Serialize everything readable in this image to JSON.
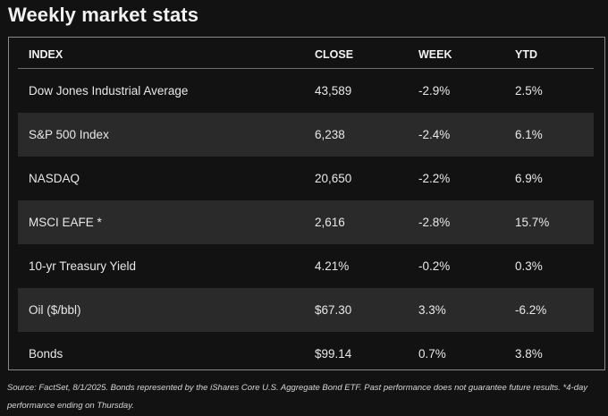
{
  "title": "Weekly market stats",
  "table": {
    "headers": [
      "INDEX",
      "CLOSE",
      "WEEK",
      "YTD"
    ],
    "rows": [
      {
        "index": "Dow Jones Industrial Average",
        "close": "43,589",
        "week": "-2.9%",
        "ytd": "2.5%"
      },
      {
        "index": "S&P 500 Index",
        "close": "6,238",
        "week": "-2.4%",
        "ytd": "6.1%"
      },
      {
        "index": "NASDAQ",
        "close": "20,650",
        "week": "-2.2%",
        "ytd": "6.9%"
      },
      {
        "index": "MSCI EAFE *",
        "close": "2,616",
        "week": "-2.8%",
        "ytd": "15.7%"
      },
      {
        "index": "10-yr Treasury Yield",
        "close": "4.21%",
        "week": "-0.2%",
        "ytd": "0.3%"
      },
      {
        "index": "Oil ($/bbl)",
        "close": "$67.30",
        "week": "3.3%",
        "ytd": "-6.2%"
      },
      {
        "index": "Bonds",
        "close": "$99.14",
        "week": "0.7%",
        "ytd": "3.8%"
      }
    ]
  },
  "source": "Source: FactSet, 8/1/2025. Bonds represented by the iShares Core U.S. Aggregate Bond ETF. Past performance does not guarantee future results. *4-day performance ending on Thursday.",
  "colors": {
    "background": "#121212",
    "alt_row": "#2a2a2a",
    "border": "#8a8a8a",
    "text": "#eaeaea"
  }
}
